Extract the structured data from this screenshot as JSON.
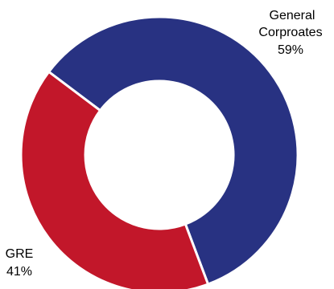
{
  "chart_data": {
    "type": "pie",
    "variant": "donut",
    "title": "",
    "categories": [
      "General Corproates",
      "GRE"
    ],
    "values": [
      59,
      41
    ],
    "unit": "%",
    "data_labels": [
      {
        "category_lines": [
          "General",
          "Corproates"
        ],
        "value_text": "59%"
      },
      {
        "category_lines": [
          "GRE"
        ],
        "value_text": "41%"
      }
    ],
    "colors": [
      "#283282",
      "#C2172A"
    ],
    "slice_border_color": "#ffffff",
    "legend": "none",
    "start_position": "top-left, clockwise"
  }
}
